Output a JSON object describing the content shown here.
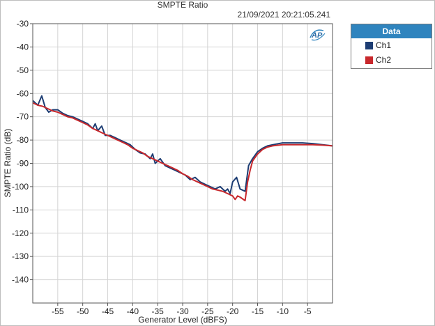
{
  "timestamp": "21/09/2021 20:21:05.241",
  "legend": {
    "title": "Data",
    "items": [
      {
        "label": "Ch1",
        "color": "#1d3d73"
      },
      {
        "label": "Ch2",
        "color": "#c8282c"
      }
    ]
  },
  "logo_icon": "ap-logo-icon",
  "chart_data": {
    "type": "line",
    "title": "SMPTE Ratio",
    "xlabel": "Generator Level (dBFS)",
    "ylabel": "SMPTE Ratio (dB)",
    "xlim": [
      -60,
      0
    ],
    "ylim": [
      -150,
      -30
    ],
    "xticks": [
      -55,
      -50,
      -45,
      -40,
      -35,
      -30,
      -25,
      -20,
      -15,
      -10,
      -5
    ],
    "yticks": [
      -30,
      -40,
      -50,
      -60,
      -70,
      -80,
      -90,
      -100,
      -110,
      -120,
      -130,
      -140
    ],
    "grid": true,
    "legend_position": "top-right",
    "series": [
      {
        "name": "Ch1",
        "color": "#1d3d73",
        "points": [
          [
            -60,
            -63
          ],
          [
            -59,
            -65
          ],
          [
            -58.2,
            -61
          ],
          [
            -57.5,
            -66
          ],
          [
            -56.8,
            -68
          ],
          [
            -56,
            -67
          ],
          [
            -55,
            -67
          ],
          [
            -54,
            -68.5
          ],
          [
            -53,
            -69.5
          ],
          [
            -52,
            -70
          ],
          [
            -51,
            -71
          ],
          [
            -50,
            -72
          ],
          [
            -49,
            -73
          ],
          [
            -48,
            -75
          ],
          [
            -47.5,
            -73
          ],
          [
            -47,
            -76
          ],
          [
            -46.2,
            -74
          ],
          [
            -45.5,
            -78
          ],
          [
            -44.5,
            -78
          ],
          [
            -43.5,
            -79
          ],
          [
            -42.5,
            -80
          ],
          [
            -41.5,
            -81
          ],
          [
            -40.5,
            -82
          ],
          [
            -39.5,
            -84
          ],
          [
            -38.5,
            -85.5
          ],
          [
            -37.5,
            -86
          ],
          [
            -36.5,
            -88
          ],
          [
            -36,
            -86
          ],
          [
            -35.5,
            -90
          ],
          [
            -34.5,
            -88
          ],
          [
            -33.5,
            -91
          ],
          [
            -32.5,
            -92
          ],
          [
            -31.5,
            -93
          ],
          [
            -30.5,
            -94
          ],
          [
            -29.5,
            -95
          ],
          [
            -28.5,
            -97
          ],
          [
            -27.5,
            -96
          ],
          [
            -26.5,
            -98
          ],
          [
            -25.5,
            -99
          ],
          [
            -24.5,
            -100
          ],
          [
            -23.5,
            -101
          ],
          [
            -22.5,
            -100
          ],
          [
            -21.5,
            -102
          ],
          [
            -21,
            -101
          ],
          [
            -20.5,
            -103
          ],
          [
            -20,
            -98
          ],
          [
            -19.2,
            -96
          ],
          [
            -18.5,
            -101
          ],
          [
            -17.5,
            -102
          ],
          [
            -16.8,
            -91
          ],
          [
            -16,
            -88
          ],
          [
            -15,
            -85
          ],
          [
            -14,
            -83.5
          ],
          [
            -13,
            -82.5
          ],
          [
            -12,
            -82
          ],
          [
            -10,
            -81.2
          ],
          [
            -8,
            -81.2
          ],
          [
            -6,
            -81.2
          ],
          [
            -4,
            -81.5
          ],
          [
            -2,
            -82
          ],
          [
            0,
            -82.5
          ]
        ]
      },
      {
        "name": "Ch2",
        "color": "#c8282c",
        "points": [
          [
            -60,
            -64
          ],
          [
            -59,
            -65
          ],
          [
            -58,
            -65.5
          ],
          [
            -57,
            -66.5
          ],
          [
            -56,
            -67.5
          ],
          [
            -55,
            -68
          ],
          [
            -54,
            -69
          ],
          [
            -53,
            -70
          ],
          [
            -52,
            -70.5
          ],
          [
            -51,
            -71.5
          ],
          [
            -50,
            -72.5
          ],
          [
            -49,
            -73.5
          ],
          [
            -48,
            -75
          ],
          [
            -47,
            -76
          ],
          [
            -46,
            -77
          ],
          [
            -45,
            -78
          ],
          [
            -44,
            -79
          ],
          [
            -43,
            -80
          ],
          [
            -42,
            -81
          ],
          [
            -41,
            -82
          ],
          [
            -40,
            -83.5
          ],
          [
            -39,
            -84.5
          ],
          [
            -38,
            -85.5
          ],
          [
            -37,
            -87
          ],
          [
            -36,
            -88
          ],
          [
            -35,
            -89
          ],
          [
            -34,
            -90
          ],
          [
            -33,
            -91
          ],
          [
            -32,
            -92
          ],
          [
            -31,
            -93
          ],
          [
            -30,
            -94.5
          ],
          [
            -29,
            -95.5
          ],
          [
            -28,
            -97
          ],
          [
            -27,
            -98
          ],
          [
            -26,
            -99
          ],
          [
            -25,
            -100
          ],
          [
            -24,
            -101
          ],
          [
            -23,
            -101.5
          ],
          [
            -22,
            -102
          ],
          [
            -21,
            -103
          ],
          [
            -20,
            -104
          ],
          [
            -19.5,
            -105.5
          ],
          [
            -19,
            -104
          ],
          [
            -18.5,
            -104.5
          ],
          [
            -17.5,
            -106
          ],
          [
            -17,
            -98
          ],
          [
            -16.5,
            -93
          ],
          [
            -16,
            -89
          ],
          [
            -15,
            -86
          ],
          [
            -14,
            -84
          ],
          [
            -13,
            -83
          ],
          [
            -12,
            -82.5
          ],
          [
            -10,
            -82
          ],
          [
            -8,
            -82
          ],
          [
            -6,
            -82
          ],
          [
            -4,
            -82
          ],
          [
            -2,
            -82.2
          ],
          [
            0,
            -82.5
          ]
        ]
      }
    ]
  }
}
